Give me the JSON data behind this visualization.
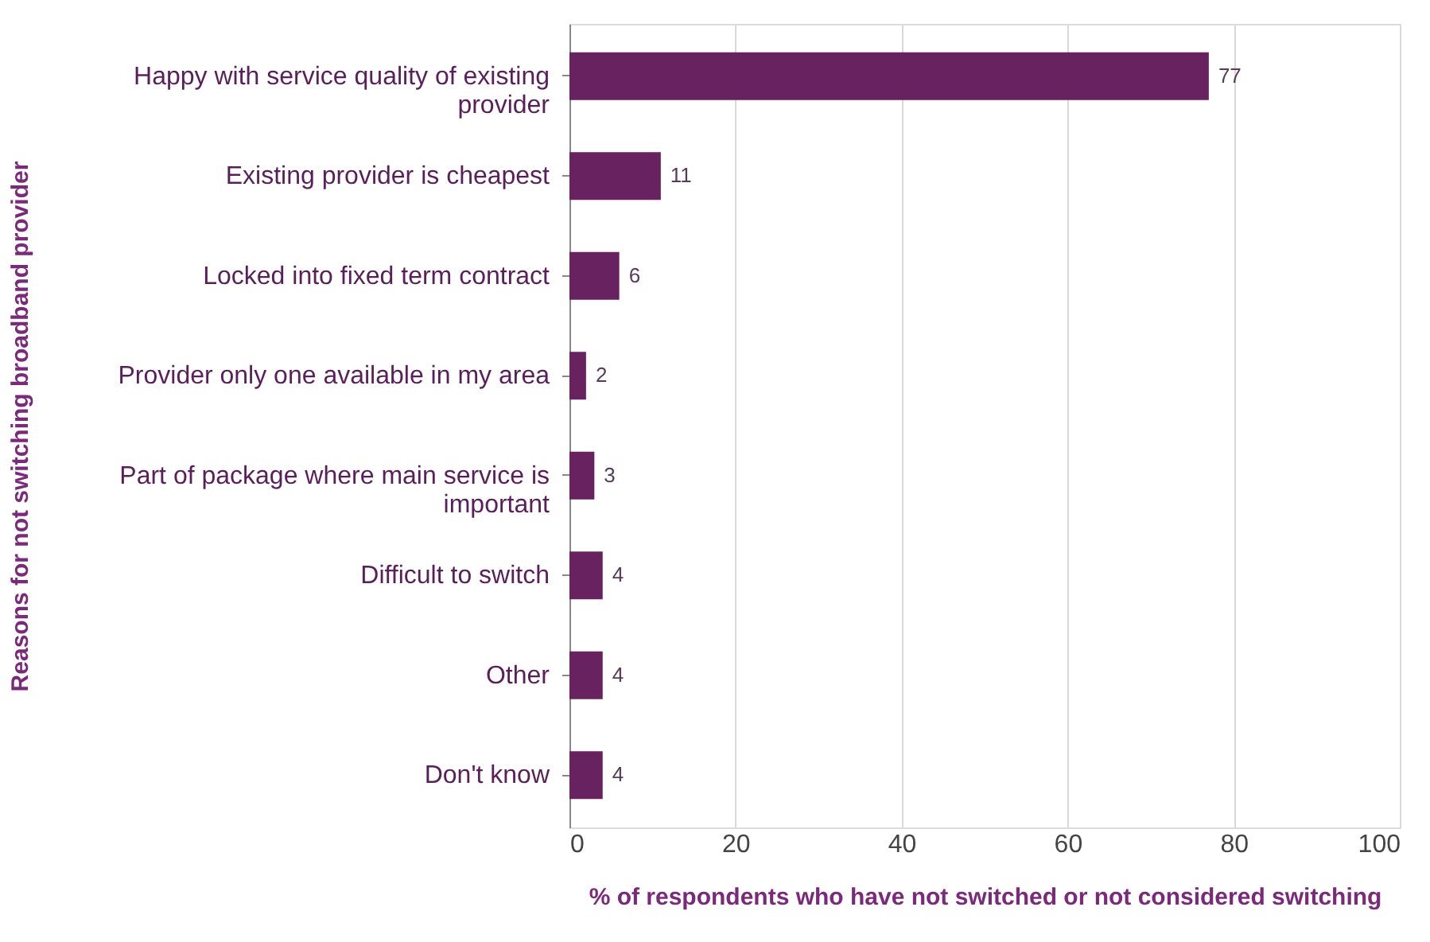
{
  "chart_data": {
    "type": "bar",
    "orientation": "horizontal",
    "categories": [
      "Happy with service quality of existing provider",
      "Existing provider is cheapest",
      "Locked into fixed term contract",
      "Provider only one available in my area",
      "Part of package where main service is important",
      "Difficult to switch",
      "Other",
      "Don't know"
    ],
    "values": [
      77,
      11,
      6,
      2,
      3,
      4,
      4,
      4
    ],
    "color": "#68225f",
    "xlabel": "% of respondents who have not switched or not considered switching",
    "ylabel": "Reasons for not switching broadband provider",
    "xlim": [
      0,
      100
    ],
    "xticks": [
      0,
      20,
      40,
      60,
      80,
      100
    ],
    "grid": "x",
    "data_labels": true
  }
}
